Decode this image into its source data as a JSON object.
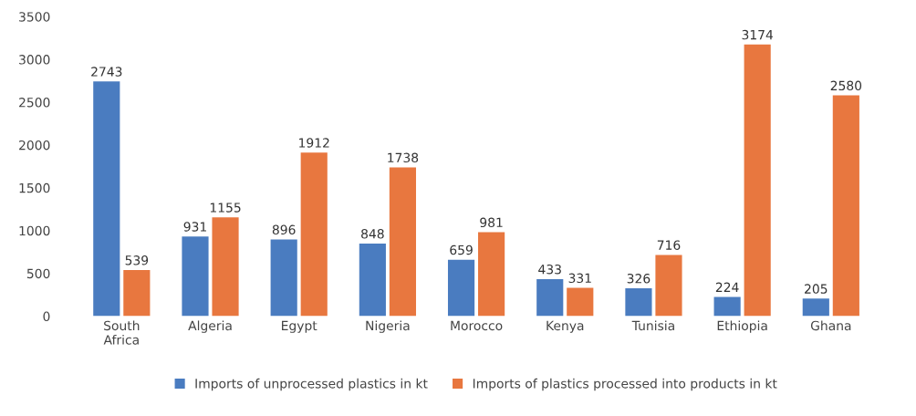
{
  "chart_data": {
    "type": "bar",
    "categories": [
      "South\nAfrica",
      "Algeria",
      "Egypt",
      "Nigeria",
      "Morocco",
      "Kenya",
      "Tunisia",
      "Ethiopia",
      "Ghana"
    ],
    "series": [
      {
        "name": "Imports of unprocessed plastics in kt",
        "color": "#4a7cc0",
        "values": [
          2743,
          931,
          896,
          848,
          659,
          433,
          326,
          224,
          205
        ]
      },
      {
        "name": "Imports of plastics processed into products in kt",
        "color": "#e8773f",
        "values": [
          539,
          1155,
          1912,
          1738,
          981,
          331,
          716,
          3174,
          2580
        ]
      }
    ],
    "ylim": [
      0,
      3500
    ],
    "yticks": [
      0,
      500,
      1000,
      1500,
      2000,
      2500,
      3000,
      3500
    ],
    "data_labels": true,
    "legend": "bottom",
    "grid": false
  }
}
